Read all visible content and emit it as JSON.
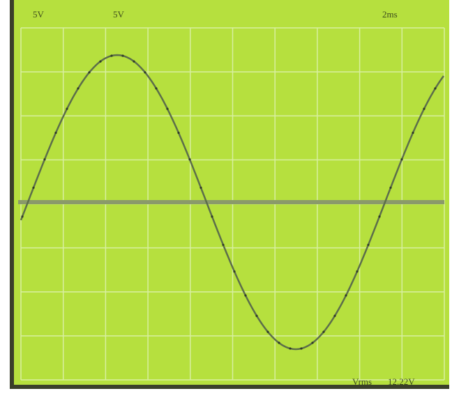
{
  "screen": {
    "channel_labels": [
      "5V",
      "5V"
    ],
    "timebase": "2ms",
    "readout": {
      "label": "Vrms",
      "value": "12.22V"
    }
  }
}
